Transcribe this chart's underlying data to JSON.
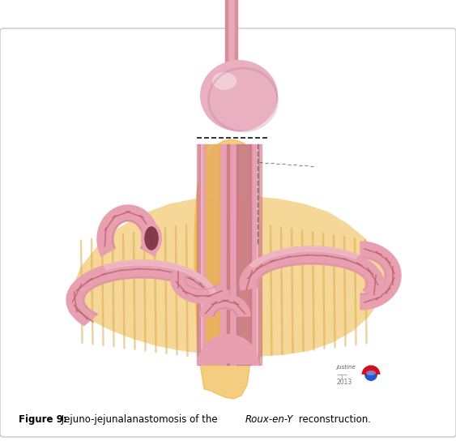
{
  "caption_bold": "Figure 9:",
  "caption_normal": " Jejuno-jejunalanastomosis of the ",
  "caption_italic": "Roux-en-Y",
  "caption_end": " reconstruction.",
  "bg_color": "#ffffff",
  "border_color": "#c8c8c8",
  "intestine_pink": "#e8a0b0",
  "intestine_dark": "#c87080",
  "intestine_mid": "#d89098",
  "intestine_light": "#f0c8d0",
  "intestine_seg": "#b86070",
  "tissue_bg": "#f5d8a0",
  "tissue_dark": "#e8c070",
  "tissue_stripe": "#d4a840",
  "glow_orange": "#f0c060",
  "dashed_color": "#222222",
  "fig_width": 5.63,
  "fig_height": 5.44,
  "dpi": 100
}
